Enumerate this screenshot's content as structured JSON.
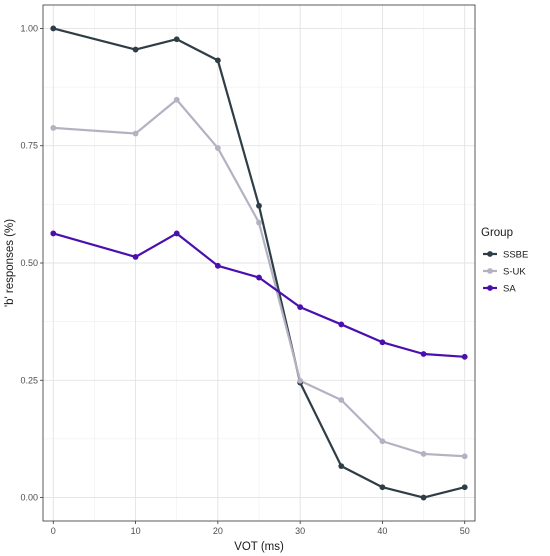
{
  "chart_data": {
    "type": "line",
    "xlabel": "VOT (ms)",
    "ylabel": "'b' responses (%)",
    "x": [
      0,
      10,
      15,
      20,
      25,
      30,
      35,
      40,
      45,
      50
    ],
    "xticks": [
      "0",
      "10",
      "20",
      "30",
      "40",
      "50"
    ],
    "yticks": [
      "0.00",
      "0.25",
      "0.50",
      "0.75",
      "1.00"
    ],
    "xlim": [
      -1.25,
      51.25
    ],
    "ylim": [
      -0.05,
      1.05
    ],
    "grid": true,
    "legend": {
      "title": "Group",
      "placement": "right"
    },
    "series": [
      {
        "name": "SSBE",
        "color": "#2f3e46",
        "values": [
          1.0,
          0.955,
          0.977,
          0.932,
          0.622,
          0.245,
          0.067,
          0.022,
          0.0,
          0.022
        ]
      },
      {
        "name": "S-UK",
        "color": "#b4b2c2",
        "values": [
          0.788,
          0.776,
          0.848,
          0.745,
          0.586,
          0.249,
          0.208,
          0.12,
          0.093,
          0.088
        ]
      },
      {
        "name": "SA",
        "color": "#4a0fae",
        "values": [
          0.563,
          0.513,
          0.563,
          0.494,
          0.469,
          0.406,
          0.369,
          0.331,
          0.306,
          0.3
        ]
      }
    ]
  }
}
